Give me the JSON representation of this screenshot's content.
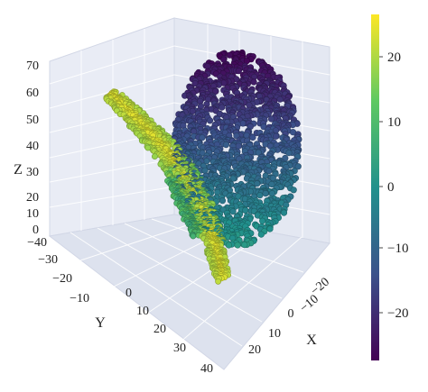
{
  "chart_data": {
    "type": "scatter3d",
    "title": "",
    "axes": {
      "x": {
        "label": "X",
        "ticks": [
          "−20",
          "−10",
          "0",
          "10",
          "20"
        ],
        "range": [
          -25,
          25
        ]
      },
      "y": {
        "label": "Y",
        "ticks": [
          "−40",
          "−30",
          "−20",
          "−10",
          "0",
          "10",
          "20",
          "30",
          "40"
        ],
        "range": [
          -40,
          40
        ]
      },
      "z": {
        "label": "Z",
        "ticks": [
          "0",
          "10",
          "20",
          "30",
          "40",
          "50",
          "60",
          "70"
        ],
        "range": [
          0,
          70
        ]
      }
    },
    "colorbar": {
      "ticks": [
        "20",
        "10",
        "0",
        "−10",
        "−20"
      ],
      "range": [
        -27,
        27
      ],
      "colormap": [
        "#440154",
        "#3b528b",
        "#21918c",
        "#5ec962",
        "#fde725"
      ]
    },
    "series": [
      {
        "color_value_range": [
          -27,
          27
        ]
      }
    ],
    "grid": true,
    "legend": "none"
  }
}
